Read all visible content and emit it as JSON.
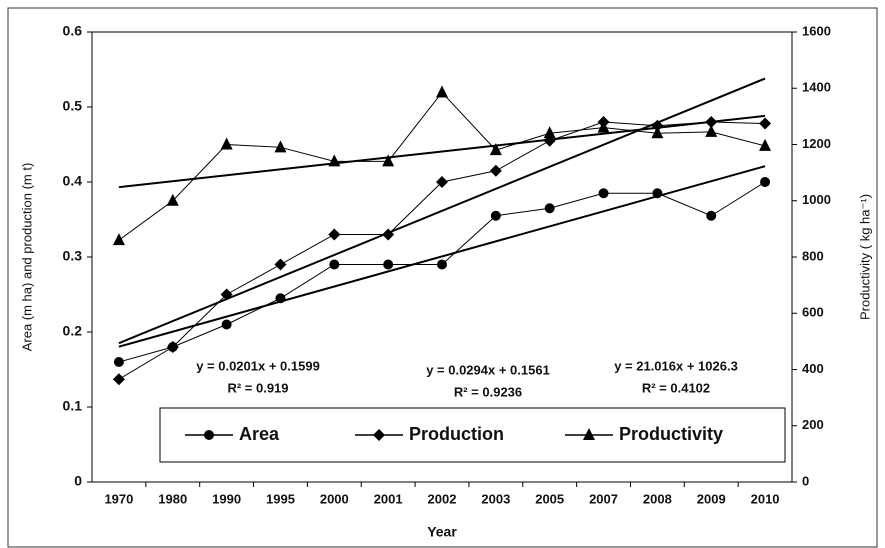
{
  "chart_data": {
    "type": "line",
    "xlabel": "Year",
    "ylabel": "Area (m ha) and production (m t)",
    "y2label": "Productivity ( kg ha⁻¹)",
    "categories": [
      "1970",
      "1980",
      "1990",
      "1995",
      "2000",
      "2001",
      "2002",
      "2003",
      "2005",
      "2007",
      "2008",
      "2009",
      "2010"
    ],
    "series": [
      {
        "name": "Area",
        "color": "#000000",
        "marker": "circle",
        "values": [
          0.16,
          0.18,
          0.21,
          0.245,
          0.29,
          0.29,
          0.29,
          0.355,
          0.365,
          0.385,
          0.385,
          0.355,
          0.4
        ]
      },
      {
        "name": "Production",
        "color": "#000000",
        "marker": "diamond",
        "values": [
          0.137,
          0.18,
          0.25,
          0.29,
          0.33,
          0.33,
          0.4,
          0.415,
          0.455,
          0.48,
          0.475,
          0.48,
          0.478
        ]
      },
      {
        "name": "Productivity",
        "color": "#000000",
        "marker": "triangle",
        "axis": "y2",
        "values": [
          860,
          1000,
          1200,
          1190,
          1140,
          1140,
          1385,
          1180,
          1240,
          1260,
          1240,
          1245,
          1195
        ]
      }
    ],
    "trendlines": true,
    "ylim": [
      0,
      0.6
    ],
    "yticks": [
      0,
      0.1,
      0.2,
      0.3,
      0.4,
      0.5,
      0.6
    ],
    "y2lim": [
      0,
      1600
    ],
    "y2ticks": [
      0,
      200,
      400,
      600,
      800,
      1000,
      1200,
      1400,
      1600
    ],
    "annotations": [
      {
        "text": "y = 0.0201x + 0.1599"
      },
      {
        "text": "R² = 0.919"
      },
      {
        "text": "y = 0.0294x + 0.1561"
      },
      {
        "text": "R² = 0.9236"
      },
      {
        "text": "y = 21.016x + 1026.3"
      },
      {
        "text": "R² = 0.4102"
      }
    ],
    "legend": "bottom"
  }
}
